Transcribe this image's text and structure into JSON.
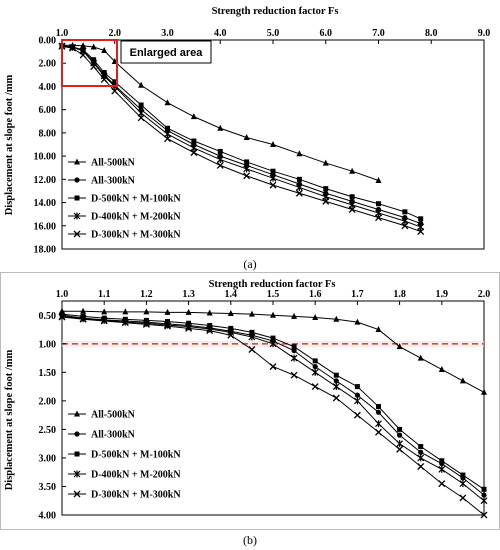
{
  "chart_data": [
    {
      "type": "line",
      "panel_label": "(a)",
      "xlabel": "Strength reduction factor Fs",
      "ylabel": "Displacement at slope foot /mm",
      "xlim": [
        1.0,
        9.0
      ],
      "ylim": [
        0,
        18
      ],
      "y_inverted": true,
      "x_axis_position": "top",
      "x_ticks": [
        "1.0",
        "2.0",
        "3.0",
        "4.0",
        "5.0",
        "6.0",
        "7.0",
        "8.0",
        "9.0"
      ],
      "y_ticks": [
        "0.00",
        "2.00",
        "4.00",
        "6.00",
        "8.00",
        "10.00",
        "12.00",
        "14.00",
        "16.00",
        "18.00"
      ],
      "legend_position": "bottom-left",
      "annotation": "Enlarged area",
      "highlight_box": {
        "x": [
          1.0,
          2.0
        ],
        "y": [
          0,
          4.0
        ],
        "color": "#e02020"
      },
      "series": [
        {
          "name": "All-500kN",
          "marker": "triangle",
          "x": [
            1.0,
            1.2,
            1.4,
            1.6,
            1.8,
            2.0,
            2.5,
            3.0,
            3.5,
            4.0,
            4.5,
            5.0,
            5.5,
            6.0,
            6.5,
            7.0
          ],
          "y": [
            0.45,
            0.46,
            0.5,
            0.6,
            0.9,
            1.85,
            3.9,
            5.4,
            6.6,
            7.6,
            8.4,
            9.0,
            9.8,
            10.6,
            11.3,
            12.1
          ]
        },
        {
          "name": "All-300kN",
          "marker": "circle",
          "x": [
            1.0,
            1.2,
            1.4,
            1.6,
            1.8,
            2.0,
            2.5,
            3.0,
            3.5,
            4.0,
            4.5,
            5.0,
            5.5,
            6.0,
            6.5,
            7.0,
            7.5,
            7.8
          ],
          "y": [
            0.5,
            0.62,
            0.9,
            1.9,
            3.0,
            3.9,
            6.0,
            7.8,
            9.0,
            10.0,
            10.8,
            11.6,
            12.4,
            13.2,
            13.9,
            14.6,
            15.3,
            15.8
          ]
        },
        {
          "name": "D-500kN + M-100kN",
          "marker": "square",
          "x": [
            1.0,
            1.2,
            1.4,
            1.6,
            1.8,
            2.0,
            2.5,
            3.0,
            3.5,
            4.0,
            4.5,
            5.0,
            5.5,
            6.0,
            6.5,
            7.0,
            7.5,
            7.8
          ],
          "y": [
            0.5,
            0.6,
            0.85,
            1.7,
            2.8,
            3.6,
            5.6,
            7.6,
            8.7,
            9.6,
            10.5,
            11.3,
            12.0,
            12.8,
            13.5,
            14.1,
            14.8,
            15.4
          ]
        },
        {
          "name": "D-400kN + M-200kN",
          "marker": "star",
          "x": [
            1.0,
            1.2,
            1.4,
            1.6,
            1.8,
            2.0,
            2.5,
            3.0,
            3.5,
            4.0,
            4.5,
            5.0,
            5.5,
            6.0,
            6.5,
            7.0,
            7.5,
            7.8
          ],
          "y": [
            0.52,
            0.62,
            0.95,
            2.0,
            3.1,
            4.0,
            6.3,
            8.1,
            9.3,
            10.3,
            11.1,
            11.9,
            12.7,
            13.5,
            14.2,
            14.9,
            15.6,
            16.1
          ]
        },
        {
          "name": "D-300kN + M-300kN",
          "marker": "x",
          "x": [
            1.0,
            1.2,
            1.4,
            1.6,
            1.8,
            2.0,
            2.5,
            3.0,
            3.5,
            4.0,
            4.5,
            5.0,
            5.5,
            6.0,
            6.5,
            7.0,
            7.5,
            7.8
          ],
          "y": [
            0.55,
            0.7,
            1.3,
            2.3,
            3.4,
            4.4,
            6.7,
            8.5,
            9.7,
            10.8,
            11.7,
            12.5,
            13.2,
            13.9,
            14.6,
            15.3,
            16.0,
            16.5
          ]
        }
      ]
    },
    {
      "type": "line",
      "panel_label": "(b)",
      "xlabel": "Strength reduction factor Fs",
      "ylabel": "Displacement at slope foot /mm",
      "xlim": [
        1.0,
        2.0
      ],
      "ylim": [
        0.25,
        4.0
      ],
      "y_inverted": true,
      "x_axis_position": "top",
      "x_ticks": [
        "1.0",
        "1.1",
        "1.2",
        "1.3",
        "1.4",
        "1.5",
        "1.6",
        "1.7",
        "1.8",
        "1.9",
        "2.0"
      ],
      "y_ticks": [
        "0.50",
        "1.00",
        "1.50",
        "2.00",
        "2.50",
        "3.00",
        "3.50",
        "4.00"
      ],
      "legend_position": "bottom-left",
      "reference_line": {
        "y": 1.0,
        "style": "dashed",
        "color": "#b5651d"
      },
      "series": [
        {
          "name": "All-500kN",
          "marker": "triangle",
          "x": [
            1.0,
            1.05,
            1.1,
            1.15,
            1.2,
            1.25,
            1.3,
            1.35,
            1.4,
            1.45,
            1.5,
            1.55,
            1.6,
            1.65,
            1.7,
            1.75,
            1.8,
            1.85,
            1.9,
            1.95,
            2.0
          ],
          "y": [
            0.43,
            0.43,
            0.44,
            0.44,
            0.44,
            0.45,
            0.45,
            0.46,
            0.47,
            0.48,
            0.5,
            0.52,
            0.54,
            0.57,
            0.62,
            0.75,
            1.05,
            1.25,
            1.45,
            1.65,
            1.85
          ]
        },
        {
          "name": "All-300kN",
          "marker": "circle",
          "x": [
            1.0,
            1.05,
            1.1,
            1.15,
            1.2,
            1.25,
            1.3,
            1.35,
            1.4,
            1.45,
            1.5,
            1.55,
            1.6,
            1.65,
            1.7,
            1.75,
            1.8,
            1.85,
            1.9,
            1.95,
            2.0
          ],
          "y": [
            0.5,
            0.55,
            0.58,
            0.6,
            0.62,
            0.65,
            0.68,
            0.72,
            0.78,
            0.85,
            0.95,
            1.12,
            1.4,
            1.65,
            1.9,
            2.2,
            2.6,
            2.9,
            3.1,
            3.35,
            3.65
          ]
        },
        {
          "name": "D-500kN + M-100kN",
          "marker": "square",
          "x": [
            1.0,
            1.05,
            1.1,
            1.15,
            1.2,
            1.25,
            1.3,
            1.35,
            1.4,
            1.45,
            1.5,
            1.55,
            1.6,
            1.65,
            1.7,
            1.75,
            1.8,
            1.85,
            1.9,
            1.95,
            2.0
          ],
          "y": [
            0.48,
            0.52,
            0.55,
            0.57,
            0.59,
            0.61,
            0.64,
            0.68,
            0.73,
            0.8,
            0.9,
            1.05,
            1.3,
            1.55,
            1.75,
            2.1,
            2.5,
            2.8,
            3.05,
            3.3,
            3.55
          ]
        },
        {
          "name": "D-400kN + M-200kN",
          "marker": "star",
          "x": [
            1.0,
            1.05,
            1.1,
            1.15,
            1.2,
            1.25,
            1.3,
            1.35,
            1.4,
            1.45,
            1.5,
            1.55,
            1.6,
            1.65,
            1.7,
            1.75,
            1.8,
            1.85,
            1.9,
            1.95,
            2.0
          ],
          "y": [
            0.52,
            0.56,
            0.59,
            0.62,
            0.64,
            0.67,
            0.7,
            0.74,
            0.8,
            0.88,
            1.0,
            1.25,
            1.5,
            1.75,
            2.0,
            2.4,
            2.75,
            3.0,
            3.2,
            3.45,
            3.75
          ]
        },
        {
          "name": "D-300kN + M-300kN",
          "marker": "x",
          "x": [
            1.0,
            1.05,
            1.1,
            1.15,
            1.2,
            1.25,
            1.3,
            1.35,
            1.4,
            1.45,
            1.5,
            1.55,
            1.6,
            1.65,
            1.7,
            1.75,
            1.8,
            1.85,
            1.9,
            1.95,
            2.0
          ],
          "y": [
            0.53,
            0.57,
            0.6,
            0.63,
            0.66,
            0.69,
            0.73,
            0.77,
            0.85,
            1.1,
            1.4,
            1.55,
            1.75,
            1.95,
            2.25,
            2.55,
            2.85,
            3.15,
            3.45,
            3.7,
            4.0
          ]
        }
      ]
    }
  ]
}
